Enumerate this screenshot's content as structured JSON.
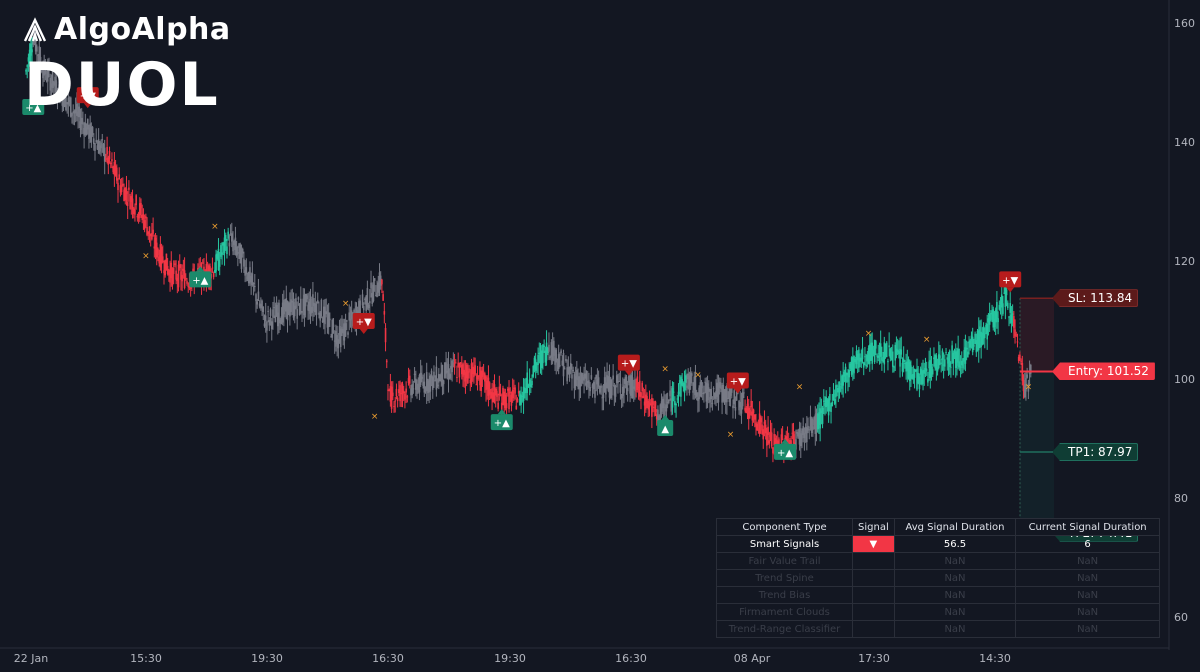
{
  "brand": {
    "name": "AlgoAlpha",
    "logo_icon": "algoalpha-logo-icon"
  },
  "ticker": "DUOL",
  "colors": {
    "background": "#131722",
    "bull": "#26c6a0",
    "bear": "#f23645",
    "neutral": "#787b86",
    "marker_bull": "#1b8a6b",
    "marker_bear": "#b71c1c",
    "cross": "#f0a030"
  },
  "chart_data": {
    "type": "candlestick",
    "y_axis": {
      "ticks": [
        160,
        140,
        120,
        100,
        80,
        60
      ],
      "ylim": [
        55,
        164
      ]
    },
    "x_axis": {
      "ticks": [
        "22 Jan",
        "15:30",
        "19:30",
        "16:30",
        "19:30",
        "16:30",
        "08 Apr",
        "17:30",
        "14:30"
      ]
    },
    "price_path": [
      {
        "i": 0,
        "p": 152,
        "t": "bear"
      },
      {
        "i": 2,
        "p": 158,
        "t": "bull"
      },
      {
        "i": 5,
        "p": 152,
        "t": "neutral"
      },
      {
        "i": 10,
        "p": 148,
        "t": "neutral"
      },
      {
        "i": 16,
        "p": 143,
        "t": "neutral"
      },
      {
        "i": 22,
        "p": 138,
        "t": "neutral"
      },
      {
        "i": 26,
        "p": 133,
        "t": "bear"
      },
      {
        "i": 32,
        "p": 128,
        "t": "bear"
      },
      {
        "i": 36,
        "p": 122,
        "t": "bear"
      },
      {
        "i": 40,
        "p": 118,
        "t": "bear"
      },
      {
        "i": 46,
        "p": 117,
        "t": "bear"
      },
      {
        "i": 52,
        "p": 119,
        "t": "bear"
      },
      {
        "i": 56,
        "p": 124,
        "t": "bull"
      },
      {
        "i": 60,
        "p": 120,
        "t": "neutral"
      },
      {
        "i": 66,
        "p": 110,
        "t": "neutral"
      },
      {
        "i": 72,
        "p": 112,
        "t": "neutral"
      },
      {
        "i": 80,
        "p": 113,
        "t": "neutral"
      },
      {
        "i": 86,
        "p": 107,
        "t": "neutral"
      },
      {
        "i": 92,
        "p": 112,
        "t": "neutral"
      },
      {
        "i": 98,
        "p": 117,
        "t": "neutral"
      },
      {
        "i": 100,
        "p": 97,
        "t": "bear"
      },
      {
        "i": 106,
        "p": 99,
        "t": "bear"
      },
      {
        "i": 112,
        "p": 100,
        "t": "neutral"
      },
      {
        "i": 118,
        "p": 102,
        "t": "neutral"
      },
      {
        "i": 124,
        "p": 101,
        "t": "bear"
      },
      {
        "i": 130,
        "p": 97,
        "t": "bear"
      },
      {
        "i": 136,
        "p": 97,
        "t": "bear"
      },
      {
        "i": 140,
        "p": 102,
        "t": "bull"
      },
      {
        "i": 144,
        "p": 106,
        "t": "bull"
      },
      {
        "i": 150,
        "p": 101,
        "t": "neutral"
      },
      {
        "i": 156,
        "p": 99,
        "t": "neutral"
      },
      {
        "i": 162,
        "p": 99,
        "t": "neutral"
      },
      {
        "i": 168,
        "p": 99,
        "t": "neutral"
      },
      {
        "i": 174,
        "p": 94,
        "t": "bear"
      },
      {
        "i": 178,
        "p": 97,
        "t": "neutral"
      },
      {
        "i": 182,
        "p": 100,
        "t": "bull"
      },
      {
        "i": 186,
        "p": 98,
        "t": "neutral"
      },
      {
        "i": 192,
        "p": 98,
        "t": "neutral"
      },
      {
        "i": 198,
        "p": 96,
        "t": "neutral"
      },
      {
        "i": 202,
        "p": 93,
        "t": "bear"
      },
      {
        "i": 206,
        "p": 89,
        "t": "bear"
      },
      {
        "i": 212,
        "p": 90,
        "t": "bear"
      },
      {
        "i": 218,
        "p": 93,
        "t": "neutral"
      },
      {
        "i": 222,
        "p": 97,
        "t": "bull"
      },
      {
        "i": 228,
        "p": 103,
        "t": "bull"
      },
      {
        "i": 234,
        "p": 105,
        "t": "bull"
      },
      {
        "i": 240,
        "p": 104,
        "t": "bull"
      },
      {
        "i": 246,
        "p": 100,
        "t": "bull"
      },
      {
        "i": 252,
        "p": 104,
        "t": "bull"
      },
      {
        "i": 258,
        "p": 104,
        "t": "bull"
      },
      {
        "i": 264,
        "p": 108,
        "t": "bull"
      },
      {
        "i": 270,
        "p": 114,
        "t": "bull"
      },
      {
        "i": 272,
        "p": 110,
        "t": "bull"
      },
      {
        "i": 273,
        "p": 106,
        "t": "bear"
      },
      {
        "i": 275,
        "p": 99,
        "t": "bear"
      },
      {
        "i": 277,
        "p": 101,
        "t": "neutral"
      }
    ],
    "signal_markers": [
      {
        "i": 2,
        "p": 146,
        "label": "+▲",
        "dir": "up"
      },
      {
        "i": 17,
        "p": 148,
        "label": "+▼",
        "dir": "down"
      },
      {
        "i": 48,
        "p": 117,
        "label": "+▲",
        "dir": "up"
      },
      {
        "i": 93,
        "p": 110,
        "label": "+▼",
        "dir": "down"
      },
      {
        "i": 131,
        "p": 93,
        "label": "+▲",
        "dir": "up"
      },
      {
        "i": 166,
        "p": 103,
        "label": "+▼",
        "dir": "down"
      },
      {
        "i": 176,
        "p": 92,
        "label": "▲",
        "dir": "up"
      },
      {
        "i": 196,
        "p": 100,
        "label": "+▼",
        "dir": "down"
      },
      {
        "i": 209,
        "p": 88,
        "label": "+▲",
        "dir": "up"
      },
      {
        "i": 271,
        "p": 117,
        "label": "+▼",
        "dir": "down"
      }
    ],
    "cross_markers": [
      {
        "i": 52,
        "p": 126
      },
      {
        "i": 33,
        "p": 121
      },
      {
        "i": 88,
        "p": 113
      },
      {
        "i": 96,
        "p": 94
      },
      {
        "i": 176,
        "p": 102
      },
      {
        "i": 185,
        "p": 101
      },
      {
        "i": 194,
        "p": 91
      },
      {
        "i": 213,
        "p": 99
      },
      {
        "i": 232,
        "p": 108
      },
      {
        "i": 248,
        "p": 107
      },
      {
        "i": 276,
        "p": 99
      }
    ],
    "levels": [
      {
        "name": "SL",
        "label": "SL: 113.84",
        "value": 113.84,
        "color": "#5c1a1a"
      },
      {
        "name": "Entry",
        "label": "Entry: 101.52",
        "value": 101.52,
        "color": "#f23645"
      },
      {
        "name": "TP1",
        "label": "TP1: 87.97",
        "value": 87.97,
        "color": "#0f3d34"
      },
      {
        "name": "TP2",
        "label": "TP2: 74.41",
        "value": 74.41,
        "color": "#0f3d34"
      }
    ]
  },
  "table": {
    "headers": [
      "Component Type",
      "Signal",
      "Avg Signal Duration",
      "Current Signal Duration"
    ],
    "rows": [
      {
        "name": "Smart Signals",
        "signal": "▼",
        "avg": "56.5",
        "current": "6",
        "active": true
      },
      {
        "name": "Fair Value Trail",
        "signal": "",
        "avg": "NaN",
        "current": "NaN",
        "active": false
      },
      {
        "name": "Trend Spine",
        "signal": "",
        "avg": "NaN",
        "current": "NaN",
        "active": false
      },
      {
        "name": "Trend Bias",
        "signal": "",
        "avg": "NaN",
        "current": "NaN",
        "active": false
      },
      {
        "name": "Firmament Clouds",
        "signal": "",
        "avg": "NaN",
        "current": "NaN",
        "active": false
      },
      {
        "name": "Trend-Range Classifier",
        "signal": "",
        "avg": "NaN",
        "current": "NaN",
        "active": false
      }
    ]
  }
}
